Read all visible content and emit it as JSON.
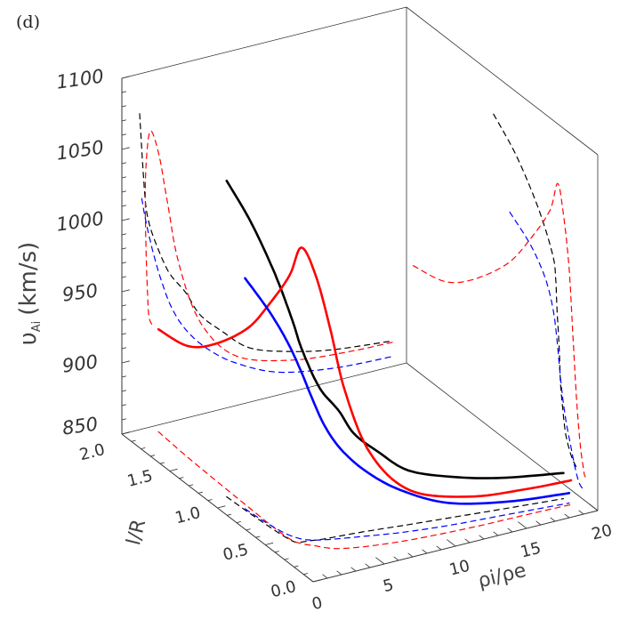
{
  "panel_label": "(d)",
  "chart_data": {
    "type": "line",
    "projection": "3d-surface-box",
    "xlabel": "ρi/ρe",
    "xlabel_parts": {
      "rho1": "ρ",
      "sub1": "i",
      "slash": "/",
      "rho2": "ρ",
      "sub2": "e"
    },
    "ylabel": "l/R",
    "zlabel": "υAi (km/s)",
    "zlabel_parts": {
      "sym": "υ",
      "sub": "Ai",
      "unit": "(km/s)"
    },
    "xlim": [
      0,
      20
    ],
    "ylim": [
      0,
      2
    ],
    "zlim": [
      850,
      1100
    ],
    "xticks": [
      "0",
      "5",
      "10",
      "15",
      "20"
    ],
    "yticks": [
      "0.0",
      "0.5",
      "1.0",
      "1.5",
      "2.0"
    ],
    "zticks": [
      "850",
      "900",
      "950",
      "1000",
      "1050",
      "1100"
    ],
    "projections": "dashed curves on back wall (l/R = 2), right wall (ρi/ρe = 20) and floor (υAi = 850)",
    "series": [
      {
        "color": "#000000",
        "rho": [
          1.25,
          1.35,
          1.5,
          1.7,
          2.0,
          2.5,
          3.0,
          3.5,
          4.5,
          5.5,
          7,
          9,
          12,
          15,
          19
        ],
        "lR": [
          1.09,
          0.85,
          0.62,
          0.47,
          0.44,
          0.43,
          0.42,
          0.41,
          0.4,
          0.39,
          0.37,
          0.34,
          0.3,
          0.26,
          0.21
        ],
        "v": [
          1072,
          1055,
          1030,
          1005,
          990,
          975,
          962,
          952,
          938,
          920,
          905,
          888,
          878,
          872,
          868
        ]
      },
      {
        "color": "#ff0000",
        "rho": [
          2.1,
          1.9,
          1.8,
          1.7,
          1.65,
          1.7,
          2.0,
          2.6,
          3.2,
          4.0,
          5.5,
          8,
          12,
          16,
          19
        ],
        "lR": [
          1.93,
          1.6,
          1.3,
          0.94,
          0.7,
          0.5,
          0.42,
          0.36,
          0.3,
          0.26,
          0.22,
          0.18,
          0.15,
          0.14,
          0.13
        ],
        "v": [
          922,
          928,
          945,
          975,
          1005,
          1035,
          1058,
          1040,
          1005,
          960,
          915,
          885,
          872,
          868,
          867
        ]
      },
      {
        "color": "#0000ff",
        "rho": [
          1.4,
          1.6,
          1.9,
          2.3,
          2.8,
          3.5,
          4.5,
          6,
          8,
          11,
          15,
          19
        ],
        "lR": [
          0.92,
          0.7,
          0.55,
          0.47,
          0.43,
          0.4,
          0.37,
          0.33,
          0.28,
          0.23,
          0.19,
          0.15
        ],
        "v": [
          1012,
          1000,
          985,
          968,
          950,
          930,
          912,
          895,
          880,
          866,
          859,
          857
        ]
      }
    ]
  }
}
